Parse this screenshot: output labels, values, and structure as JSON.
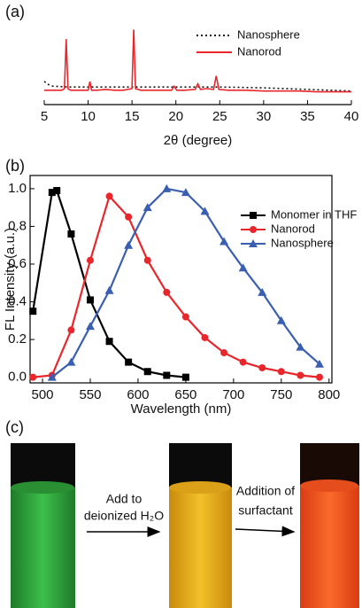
{
  "chart_data": [
    {
      "type": "line",
      "panel_label": "(a)",
      "xlabel": "2θ (degree)",
      "xlim": [
        5,
        40
      ],
      "xticks": [
        5,
        10,
        15,
        20,
        25,
        30,
        35,
        40
      ],
      "ylim": [
        0,
        1
      ],
      "legend": "upper right",
      "series": [
        {
          "name": "Nanosphere",
          "color": "#111111",
          "dash": "dotted",
          "x": [
            5,
            5.5,
            6,
            8,
            10,
            15,
            20,
            25,
            30,
            35,
            40
          ],
          "values": [
            0.29,
            0.25,
            0.23,
            0.22,
            0.22,
            0.22,
            0.22,
            0.22,
            0.21,
            0.19,
            0.17
          ]
        },
        {
          "name": "Nanorod",
          "color": "#e8262b",
          "dash": "solid",
          "x": [
            5,
            6,
            7,
            7.3,
            7.5,
            7.7,
            8,
            9,
            10,
            10.2,
            10.4,
            11,
            12,
            13,
            14,
            15,
            15.2,
            15.4,
            16,
            17,
            18,
            19.5,
            19.8,
            20.1,
            21,
            22.2,
            22.5,
            22.8,
            23.5,
            24.3,
            24.6,
            24.9,
            26,
            28,
            30,
            32,
            34,
            36,
            38,
            40
          ],
          "values": [
            0.18,
            0.18,
            0.18,
            0.2,
            0.82,
            0.2,
            0.18,
            0.18,
            0.18,
            0.29,
            0.18,
            0.18,
            0.19,
            0.18,
            0.18,
            0.2,
            0.94,
            0.2,
            0.18,
            0.18,
            0.18,
            0.18,
            0.23,
            0.18,
            0.18,
            0.19,
            0.26,
            0.19,
            0.2,
            0.19,
            0.36,
            0.19,
            0.18,
            0.18,
            0.17,
            0.17,
            0.17,
            0.16,
            0.16,
            0.16
          ]
        }
      ]
    },
    {
      "type": "line",
      "panel_label": "(b)",
      "xlabel": "Wavelength (nm)",
      "ylabel": "FL Intensity (a.u.)",
      "xlim": [
        487,
        803
      ],
      "xticks": [
        500,
        550,
        600,
        650,
        700,
        750,
        800
      ],
      "ylim": [
        -0.03,
        1.07
      ],
      "yticks": [
        {
          "value": 0,
          "label": "0.0"
        },
        0.2,
        0.4,
        0.6,
        0.8,
        {
          "value": 1,
          "label": "1.0"
        }
      ],
      "legend": "upper right",
      "series": [
        {
          "name": "Monomer in THF",
          "color": "#000000",
          "marker": "square",
          "x": [
            490,
            510,
            515,
            530,
            550,
            570,
            590,
            610,
            630,
            650
          ],
          "values": [
            0.35,
            0.98,
            0.99,
            0.76,
            0.41,
            0.19,
            0.08,
            0.03,
            0.01,
            0.0
          ]
        },
        {
          "name": "Nanorod",
          "color": "#e8262b",
          "marker": "circle",
          "x": [
            490,
            510,
            530,
            550,
            570,
            590,
            610,
            630,
            650,
            670,
            690,
            710,
            730,
            750,
            770,
            790
          ],
          "values": [
            0,
            0.01,
            0.25,
            0.62,
            0.96,
            0.85,
            0.62,
            0.45,
            0.32,
            0.21,
            0.13,
            0.08,
            0.05,
            0.03,
            0.01,
            0.0
          ]
        },
        {
          "name": "Nanosphere",
          "color": "#3a5fb0",
          "marker": "triangle",
          "x": [
            510,
            530,
            550,
            570,
            590,
            610,
            630,
            650,
            670,
            690,
            710,
            730,
            750,
            770,
            790
          ],
          "values": [
            0,
            0.08,
            0.27,
            0.46,
            0.7,
            0.9,
            1.0,
            0.98,
            0.88,
            0.72,
            0.58,
            0.45,
            0.3,
            0.16,
            0.07
          ]
        }
      ]
    }
  ],
  "photo_panel": {
    "panel_label": "(c)",
    "step1": [
      "Add to",
      "deionized H₂O"
    ],
    "step2": [
      "Addition of",
      "surfactant"
    ]
  }
}
